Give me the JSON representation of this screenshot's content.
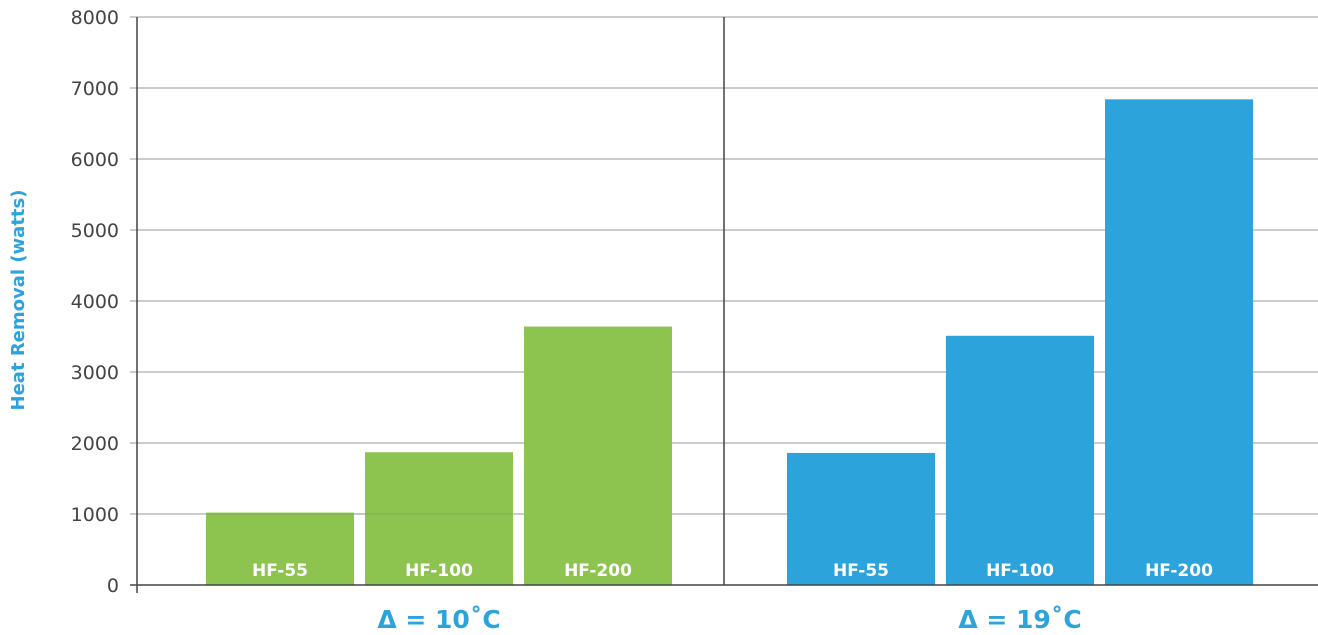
{
  "chart_data": {
    "type": "bar",
    "ylabel": "Heat Removal (watts)",
    "ylim": [
      0,
      8000
    ],
    "yticks": [
      0,
      1000,
      2000,
      3000,
      4000,
      5000,
      6000,
      7000,
      8000
    ],
    "grid": true,
    "groups": [
      {
        "label": "Δ = 10˚C",
        "color": "#8dc44f",
        "categories": [
          "HF-55",
          "HF-100",
          "HF-200"
        ],
        "values": [
          1020,
          1870,
          3640
        ]
      },
      {
        "label": "Δ = 19˚C",
        "color": "#2ca3db",
        "categories": [
          "HF-55",
          "HF-100",
          "HF-200"
        ],
        "values": [
          1860,
          3510,
          6840
        ]
      }
    ]
  }
}
